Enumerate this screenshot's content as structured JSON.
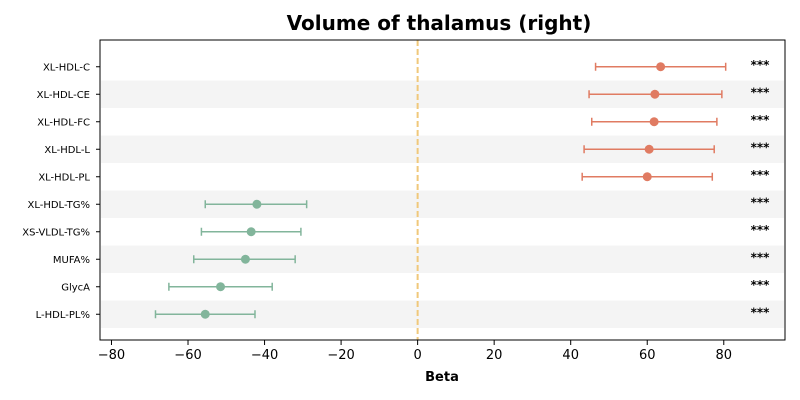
{
  "chart_data": {
    "type": "scatter",
    "title": "Volume of thalamus (right)",
    "xlabel": "Beta",
    "ylabel": "",
    "xlim": [
      -83,
      96
    ],
    "xticks": [
      -80,
      -60,
      -40,
      -20,
      0,
      20,
      40,
      60,
      80
    ],
    "xtick_labels": [
      "−80",
      "−60",
      "−40",
      "−20",
      "0",
      "20",
      "40",
      "60",
      "80"
    ],
    "reference_line_x": 0,
    "grid": false,
    "colors": {
      "positive": "#e07b62",
      "negative": "#82b59b",
      "reference_line": "#f0c87a",
      "band": "#f4f4f4"
    },
    "points": [
      {
        "label": "XL-HDL-C",
        "beta": 63.5,
        "ci_low": 46.5,
        "ci_high": 80.5,
        "sig": "***"
      },
      {
        "label": "XL-HDL-CE",
        "beta": 62.0,
        "ci_low": 44.8,
        "ci_high": 79.5,
        "sig": "***"
      },
      {
        "label": "XL-HDL-FC",
        "beta": 61.8,
        "ci_low": 45.5,
        "ci_high": 78.2,
        "sig": "***"
      },
      {
        "label": "XL-HDL-L",
        "beta": 60.5,
        "ci_low": 43.5,
        "ci_high": 77.5,
        "sig": "***"
      },
      {
        "label": "XL-HDL-PL",
        "beta": 60.0,
        "ci_low": 43.0,
        "ci_high": 77.0,
        "sig": "***"
      },
      {
        "label": "XL-HDL-TG%",
        "beta": -42.0,
        "ci_low": -55.5,
        "ci_high": -29.0,
        "sig": "***"
      },
      {
        "label": "XS-VLDL-TG%",
        "beta": -43.5,
        "ci_low": -56.5,
        "ci_high": -30.5,
        "sig": "***"
      },
      {
        "label": "MUFA%",
        "beta": -45.0,
        "ci_low": -58.5,
        "ci_high": -32.0,
        "sig": "***"
      },
      {
        "label": "GlycA",
        "beta": -51.5,
        "ci_low": -65.0,
        "ci_high": -38.0,
        "sig": "***"
      },
      {
        "label": "L-HDL-PL%",
        "beta": -55.5,
        "ci_low": -68.5,
        "ci_high": -42.5,
        "sig": "***"
      }
    ]
  }
}
